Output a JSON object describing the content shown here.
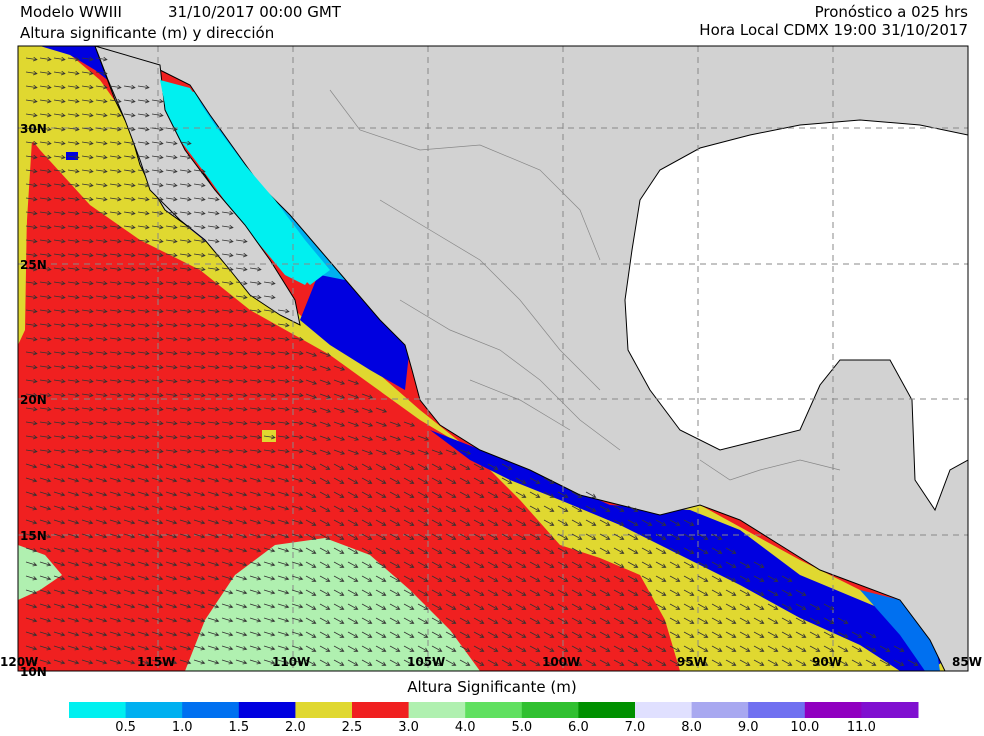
{
  "header": {
    "model": "Modelo WWIII",
    "datetime": "31/10/2017 00:00 GMT",
    "variable": "Altura significante (m) y dirección",
    "forecast": "Pronóstico a 025 hrs",
    "local_time": "Hora Local CDMX 19:00 31/10/2017"
  },
  "axes": {
    "lat_labels": [
      "30N",
      "25N",
      "20N",
      "15N",
      "10N"
    ],
    "lon_labels": [
      "120W",
      "115W",
      "110W",
      "105W",
      "100W",
      "95W",
      "90W",
      "85W"
    ]
  },
  "legend": {
    "title": "Altura Significante (m)",
    "colors": [
      "#00f0f0",
      "#00b0f0",
      "#0070f0",
      "#0000e0",
      "#e0d830",
      "#f02020",
      "#b0f0b0",
      "#60e060",
      "#30c030",
      "#009000",
      "#e0e0ff",
      "#a8a8f0",
      "#7070f0",
      "#9000c0",
      "#8010d0"
    ],
    "ticks": [
      "0.5",
      "1.0",
      "1.5",
      "2.0",
      "2.5",
      "3.0",
      "4.0",
      "5.0",
      "6.0",
      "7.0",
      "8.0",
      "9.0",
      "10.0",
      "11.0"
    ]
  },
  "colors": {
    "land": "#d2d2d2",
    "gulf_water": "#ffffff",
    "grid": "#888888",
    "arrow": "#333333"
  }
}
